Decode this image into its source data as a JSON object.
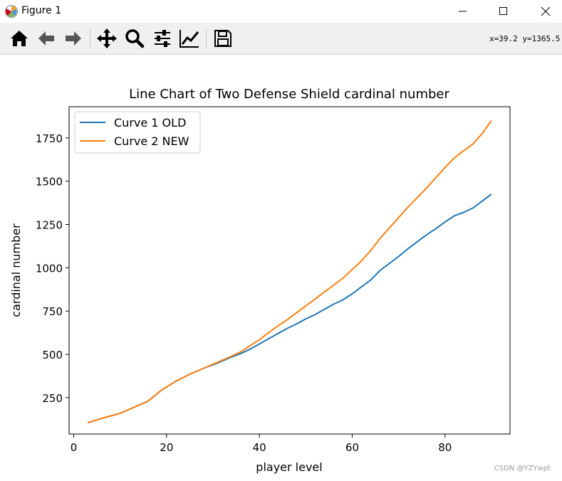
{
  "window": {
    "title": "Figure 1"
  },
  "toolbar": {
    "icons": [
      "home-icon",
      "back-arrow-icon",
      "forward-arrow-icon",
      "pan-icon",
      "zoom-icon",
      "configure-subplots-icon",
      "edit-axis-icon",
      "save-icon"
    ],
    "coordinate_readout": "x=39.2 y=1365.5"
  },
  "chart_data": {
    "type": "line",
    "title": "Line Chart of Two Defense Shield cardinal number",
    "xlabel": "player level",
    "ylabel": "cardinal number",
    "xlim": [
      -1,
      94
    ],
    "ylim": [
      40,
      1930
    ],
    "xticks": [
      0,
      20,
      40,
      60,
      80
    ],
    "yticks": [
      250,
      500,
      750,
      1000,
      1250,
      1500,
      1750
    ],
    "grid": false,
    "legend_position": "upper-left",
    "series": [
      {
        "name": "Curve 1 OLD",
        "color": "#1f77b4",
        "x": [
          3,
          6,
          10,
          13,
          16,
          19,
          22,
          25,
          28,
          31,
          34,
          36,
          38,
          40,
          42,
          44,
          46,
          48,
          50,
          52,
          54,
          56,
          58,
          60,
          62,
          64,
          66,
          68,
          70,
          72,
          74,
          76,
          78,
          80,
          82,
          84,
          86,
          88,
          90
        ],
        "values": [
          105,
          130,
          160,
          195,
          230,
          295,
          345,
          385,
          420,
          450,
          485,
          505,
          530,
          560,
          590,
          620,
          650,
          675,
          705,
          730,
          760,
          790,
          815,
          850,
          890,
          930,
          985,
          1025,
          1065,
          1110,
          1150,
          1190,
          1225,
          1265,
          1300,
          1320,
          1345,
          1385,
          1425
        ]
      },
      {
        "name": "Curve 2 NEW",
        "color": "#ff7f0e",
        "x": [
          3,
          6,
          10,
          13,
          16,
          19,
          22,
          25,
          28,
          31,
          34,
          36,
          38,
          40,
          42,
          44,
          46,
          48,
          50,
          52,
          54,
          56,
          58,
          60,
          62,
          64,
          66,
          68,
          70,
          72,
          74,
          76,
          78,
          80,
          82,
          84,
          86,
          88,
          90
        ],
        "values": [
          105,
          130,
          160,
          195,
          230,
          295,
          345,
          385,
          420,
          455,
          490,
          515,
          550,
          585,
          625,
          665,
          700,
          740,
          780,
          820,
          860,
          900,
          940,
          990,
          1040,
          1100,
          1170,
          1230,
          1290,
          1350,
          1405,
          1460,
          1520,
          1580,
          1635,
          1675,
          1715,
          1775,
          1850
        ]
      }
    ]
  },
  "watermark": "CSDN @YZYwpt"
}
